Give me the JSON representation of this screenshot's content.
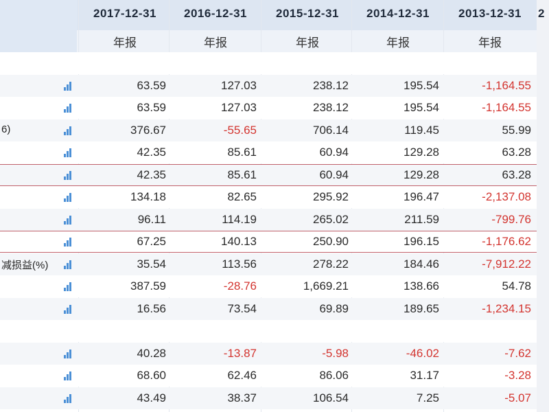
{
  "columns": [
    {
      "date": "2017-12-31",
      "type": "年报"
    },
    {
      "date": "2016-12-31",
      "type": "年报"
    },
    {
      "date": "2015-12-31",
      "type": "年报"
    },
    {
      "date": "2014-12-31",
      "type": "年报"
    },
    {
      "date": "2013-12-31",
      "type": "年报"
    }
  ],
  "edge_header": "2",
  "rows": [
    {
      "label": "",
      "spacer": true
    },
    {
      "label": "",
      "values": [
        "63.59",
        "127.03",
        "238.12",
        "195.54",
        "-1,164.55"
      ]
    },
    {
      "label": "",
      "values": [
        "63.59",
        "127.03",
        "238.12",
        "195.54",
        "-1,164.55"
      ]
    },
    {
      "label": "6)",
      "values": [
        "376.67",
        "-55.65",
        "706.14",
        "119.45",
        "55.99"
      ]
    },
    {
      "label": "",
      "values": [
        "42.35",
        "85.61",
        "60.94",
        "129.28",
        "63.28"
      ]
    },
    {
      "label": "",
      "values": [
        "42.35",
        "85.61",
        "60.94",
        "129.28",
        "63.28"
      ],
      "highlight": true
    },
    {
      "label": "",
      "values": [
        "134.18",
        "82.65",
        "295.92",
        "196.47",
        "-2,137.08"
      ]
    },
    {
      "label": "",
      "values": [
        "96.11",
        "114.19",
        "265.02",
        "211.59",
        "-799.76"
      ]
    },
    {
      "label": "",
      "values": [
        "67.25",
        "140.13",
        "250.90",
        "196.15",
        "-1,176.62"
      ],
      "highlight": true
    },
    {
      "label": "减损益(%)",
      "values": [
        "35.54",
        "113.56",
        "278.22",
        "184.46",
        "-7,912.22"
      ]
    },
    {
      "label": "",
      "values": [
        "387.59",
        "-28.76",
        "1,669.21",
        "138.66",
        "54.78"
      ]
    },
    {
      "label": "",
      "values": [
        "16.56",
        "73.54",
        "69.89",
        "189.65",
        "-1,234.15"
      ]
    },
    {
      "label": "",
      "spacer": true
    },
    {
      "label": "",
      "values": [
        "40.28",
        "-13.87",
        "-5.98",
        "-46.02",
        "-7.62"
      ]
    },
    {
      "label": "",
      "values": [
        "68.60",
        "62.46",
        "86.06",
        "31.17",
        "-3.28"
      ]
    },
    {
      "label": "",
      "values": [
        "43.49",
        "38.37",
        "106.54",
        "7.25",
        "-5.07"
      ]
    }
  ],
  "icons": {
    "row_chart": "bar-chart-icon"
  },
  "colors": {
    "negative": "#d3342f",
    "header_bg": "#dde6f2",
    "accent": "#4a8fd6",
    "highlight_border": "#c0606a"
  }
}
